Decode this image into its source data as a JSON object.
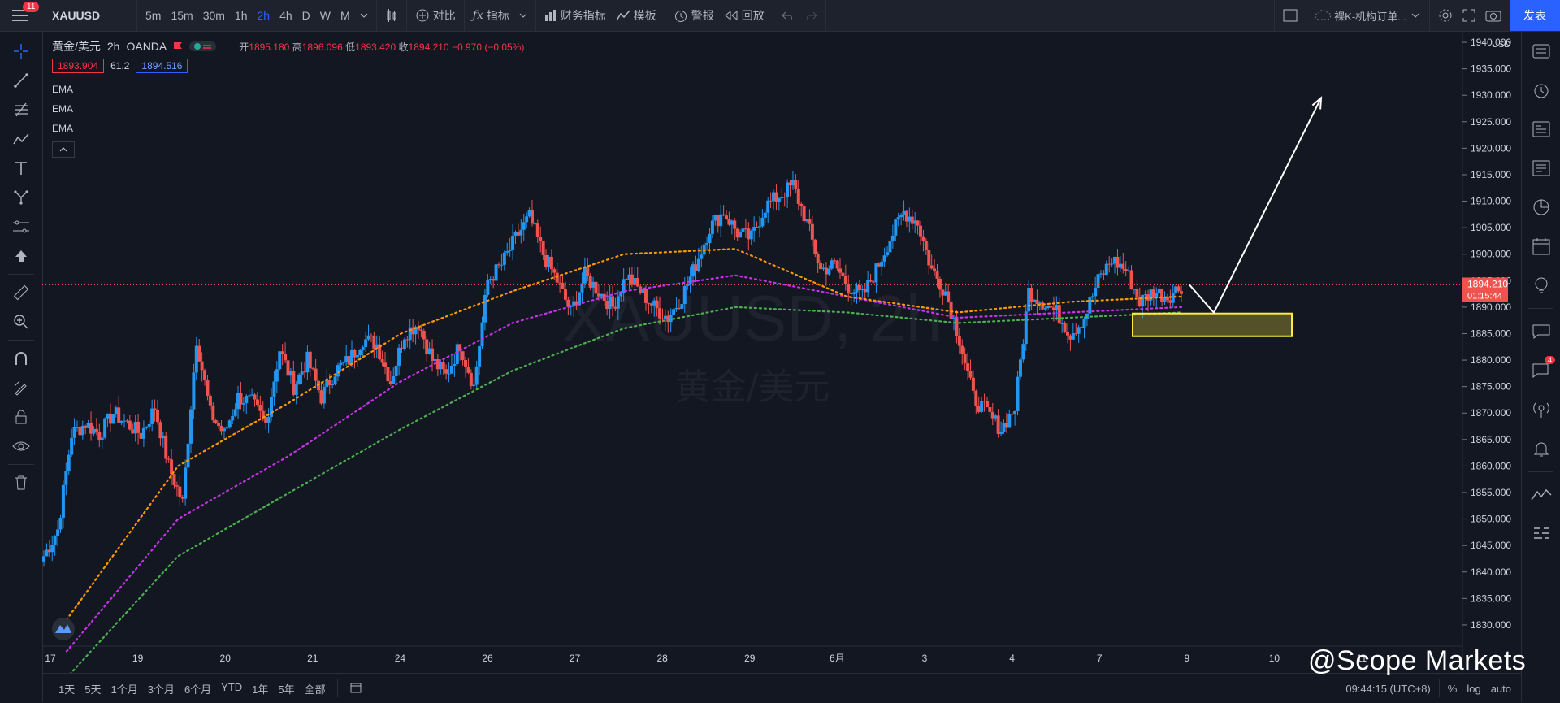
{
  "topbar": {
    "menu_badge": "11",
    "symbol": "XAUUSD",
    "intervals": [
      "5m",
      "15m",
      "30m",
      "1h",
      "2h",
      "4h",
      "D",
      "W",
      "M"
    ],
    "active_interval": "2h",
    "compare_label": "对比",
    "indicators_label": "指标",
    "financials_label": "财务指标",
    "templates_label": "模板",
    "alert_label": "警报",
    "replay_label": "回放",
    "layout_name": "裸K-机构订单...",
    "publish_label": "发表"
  },
  "legend": {
    "title": "黄金/美元",
    "interval": "2h",
    "source": "OANDA",
    "open_label": "开",
    "open": "1895.180",
    "high_label": "高",
    "high": "1896.096",
    "low_label": "低",
    "low": "1893.420",
    "close_label": "收",
    "close": "1894.210",
    "change": "−0.970 (−0.05%)",
    "bid": "1893.904",
    "spread": "61.2",
    "ask": "1894.516",
    "indicators": [
      "EMA",
      "EMA",
      "EMA"
    ]
  },
  "chart_data": {
    "type": "candlestick",
    "symbol_watermark": "XAUUSD, 2h",
    "name_watermark": "黄金/美元",
    "currency": "USD",
    "y_range": [
      1826,
      1942
    ],
    "y_ticks": [
      1830,
      1835,
      1840,
      1845,
      1850,
      1855,
      1860,
      1865,
      1870,
      1875,
      1880,
      1885,
      1890,
      1895,
      1900,
      1905,
      1910,
      1915,
      1920,
      1925,
      1930,
      1935,
      1940
    ],
    "x_labels": [
      "17",
      "19",
      "20",
      "21",
      "24",
      "26",
      "27",
      "28",
      "29",
      "6月",
      "3",
      "4",
      "7",
      "9",
      "10",
      "11"
    ],
    "last_price": "1894.210",
    "countdown": "01:15:44",
    "anchors": [
      1843,
      1848,
      1866,
      1868,
      1866,
      1870,
      1868,
      1866,
      1871,
      1860,
      1853,
      1884,
      1870,
      1866,
      1873,
      1872,
      1868,
      1882,
      1875,
      1880,
      1873,
      1878,
      1880,
      1884,
      1883,
      1876,
      1885,
      1887,
      1880,
      1877,
      1883,
      1875,
      1895,
      1898,
      1903,
      1907,
      1900,
      1895,
      1889,
      1896,
      1893,
      1890,
      1896,
      1893,
      1890,
      1888,
      1892,
      1898,
      1905,
      1908,
      1904,
      1903,
      1909,
      1911,
      1913,
      1906,
      1897,
      1898,
      1894,
      1892,
      1897,
      1903,
      1908,
      1906,
      1897,
      1893,
      1884,
      1873,
      1870,
      1867,
      1871,
      1893,
      1891,
      1889,
      1885,
      1888,
      1895,
      1899,
      1897,
      1891,
      1893,
      1892,
      1894
    ],
    "ema_fast": {
      "color": "#ff9800",
      "start": 1831,
      "mid": [
        1860,
        1872,
        1885,
        1893,
        1900,
        1901,
        1892,
        1889,
        1891,
        1892
      ]
    },
    "ema_mid": {
      "color": "#c832e8",
      "start": 1825,
      "mid": [
        1850,
        1862,
        1876,
        1887,
        1893,
        1896,
        1892,
        1888,
        1889,
        1890
      ]
    },
    "ema_slow": {
      "color": "#4caf50",
      "start": 1820,
      "mid": [
        1843,
        1855,
        1867,
        1878,
        1886,
        1890,
        1889,
        1887,
        1888,
        1889
      ]
    },
    "zone": {
      "low": 1884.5,
      "high": 1888.8,
      "color": "#ffeb3b"
    },
    "target_price": 1929.5
  },
  "bottombar": {
    "ranges": [
      "1天",
      "5天",
      "1个月",
      "3个月",
      "6个月",
      "YTD",
      "1年",
      "5年",
      "全部"
    ],
    "time": "09:44:15 (UTC+8)",
    "percent": "%",
    "log": "log",
    "auto": "auto"
  },
  "watermark": "@Scope Markets",
  "right_badge": "4"
}
